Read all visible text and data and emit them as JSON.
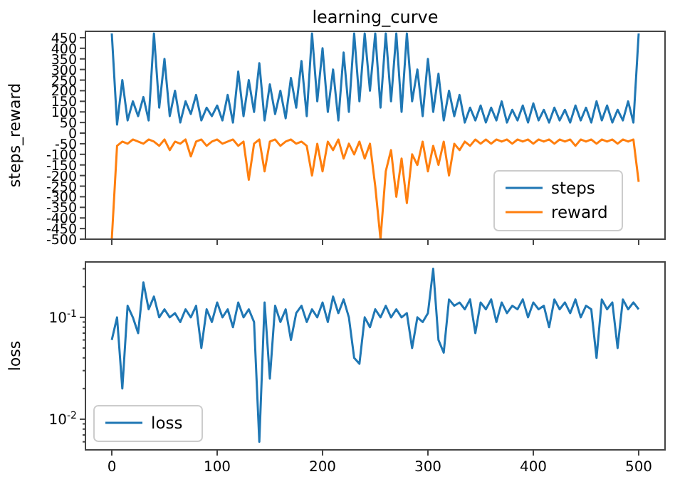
{
  "chart_data": [
    {
      "type": "line",
      "title": "learning_curve",
      "ylabel": "steps_reward",
      "legend": "bottom right",
      "grid": false,
      "tick_labels": "y",
      "xlim": [
        -25,
        525
      ],
      "xticks": [
        0,
        100,
        200,
        300,
        400,
        500
      ],
      "ylim": [
        -500,
        480
      ],
      "yticks": [
        -500,
        -450,
        -400,
        -350,
        -300,
        -250,
        -200,
        -150,
        -100,
        -50,
        0,
        50,
        100,
        150,
        200,
        250,
        300,
        350,
        400,
        450
      ],
      "x": [
        0,
        5,
        10,
        15,
        20,
        25,
        30,
        35,
        40,
        45,
        50,
        55,
        60,
        65,
        70,
        75,
        80,
        85,
        90,
        95,
        100,
        105,
        110,
        115,
        120,
        125,
        130,
        135,
        140,
        145,
        150,
        155,
        160,
        165,
        170,
        175,
        180,
        185,
        190,
        195,
        200,
        205,
        210,
        215,
        220,
        225,
        230,
        235,
        240,
        245,
        250,
        255,
        260,
        265,
        270,
        275,
        280,
        285,
        290,
        295,
        300,
        305,
        310,
        315,
        320,
        325,
        330,
        335,
        340,
        345,
        350,
        355,
        360,
        365,
        370,
        375,
        380,
        385,
        390,
        395,
        400,
        405,
        410,
        415,
        420,
        425,
        430,
        435,
        440,
        445,
        450,
        455,
        460,
        465,
        470,
        475,
        480,
        485,
        490,
        495,
        500
      ],
      "series": [
        {
          "name": "steps",
          "color": "#1f77b4",
          "values": [
            470,
            40,
            250,
            60,
            150,
            80,
            170,
            60,
            470,
            120,
            350,
            80,
            200,
            50,
            150,
            90,
            180,
            60,
            120,
            80,
            130,
            60,
            180,
            50,
            290,
            80,
            250,
            100,
            330,
            60,
            230,
            90,
            200,
            70,
            260,
            120,
            340,
            80,
            470,
            150,
            400,
            100,
            300,
            60,
            380,
            100,
            470,
            150,
            470,
            200,
            470,
            120,
            470,
            150,
            470,
            100,
            470,
            150,
            300,
            80,
            350,
            100,
            280,
            60,
            200,
            80,
            180,
            50,
            120,
            60,
            130,
            50,
            120,
            60,
            150,
            50,
            110,
            60,
            130,
            50,
            140,
            60,
            110,
            50,
            120,
            60,
            110,
            50,
            130,
            60,
            120,
            50,
            150,
            60,
            130,
            50,
            110,
            60,
            150,
            50,
            470
          ]
        },
        {
          "name": "reward",
          "color": "#ff7f0e",
          "values": [
            -500,
            -60,
            -40,
            -50,
            -30,
            -40,
            -50,
            -30,
            -40,
            -60,
            -30,
            -80,
            -40,
            -50,
            -30,
            -110,
            -40,
            -30,
            -60,
            -40,
            -30,
            -50,
            -40,
            -30,
            -60,
            -40,
            -220,
            -50,
            -30,
            -180,
            -40,
            -30,
            -60,
            -40,
            -30,
            -50,
            -40,
            -60,
            -200,
            -50,
            -180,
            -40,
            -80,
            -30,
            -120,
            -50,
            -100,
            -40,
            -120,
            -50,
            -250,
            -500,
            -180,
            -80,
            -300,
            -120,
            -330,
            -100,
            -150,
            -40,
            -180,
            -60,
            -150,
            -40,
            -200,
            -50,
            -80,
            -40,
            -60,
            -30,
            -50,
            -30,
            -50,
            -30,
            -40,
            -30,
            -50,
            -30,
            -40,
            -30,
            -50,
            -30,
            -40,
            -30,
            -50,
            -30,
            -40,
            -30,
            -60,
            -30,
            -40,
            -30,
            -50,
            -30,
            -40,
            -30,
            -50,
            -30,
            -40,
            -30,
            -230
          ]
        }
      ]
    },
    {
      "type": "line",
      "ylabel": "loss",
      "legend": "bottom left",
      "grid": false,
      "log": "y",
      "xlim": [
        -25,
        525
      ],
      "xticks": [
        0,
        100,
        200,
        300,
        400,
        500
      ],
      "ylim": [
        0.005,
        0.35
      ],
      "yticks": [
        {
          "value": 0.006,
          "label": null
        },
        {
          "value": 0.007,
          "label": null
        },
        {
          "value": 0.008,
          "label": null
        },
        {
          "value": 0.009,
          "label": null
        },
        {
          "value": 0.01,
          "label": "10$^{-2}$"
        },
        {
          "value": 0.02,
          "label": null
        },
        {
          "value": 0.03,
          "label": null
        },
        {
          "value": 0.04,
          "label": null
        },
        {
          "value": 0.05,
          "label": null
        },
        {
          "value": 0.06,
          "label": null
        },
        {
          "value": 0.07,
          "label": null
        },
        {
          "value": 0.08,
          "label": null
        },
        {
          "value": 0.09,
          "label": null
        },
        {
          "value": 0.1,
          "label": "10$^{-1}$"
        },
        {
          "value": 0.2,
          "label": null
        },
        {
          "value": 0.3,
          "label": null
        }
      ],
      "x": [
        0,
        5,
        10,
        15,
        20,
        25,
        30,
        35,
        40,
        45,
        50,
        55,
        60,
        65,
        70,
        75,
        80,
        85,
        90,
        95,
        100,
        105,
        110,
        115,
        120,
        125,
        130,
        135,
        140,
        145,
        150,
        155,
        160,
        165,
        170,
        175,
        180,
        185,
        190,
        195,
        200,
        205,
        210,
        215,
        220,
        225,
        230,
        235,
        240,
        245,
        250,
        255,
        260,
        265,
        270,
        275,
        280,
        285,
        290,
        295,
        300,
        305,
        310,
        315,
        320,
        325,
        330,
        335,
        340,
        345,
        350,
        355,
        360,
        365,
        370,
        375,
        380,
        385,
        390,
        395,
        400,
        405,
        410,
        415,
        420,
        425,
        430,
        435,
        440,
        445,
        450,
        455,
        460,
        465,
        470,
        475,
        480,
        485,
        490,
        495,
        500
      ],
      "series": [
        {
          "name": "loss",
          "color": "#1f77b4",
          "values": [
            0.06,
            0.1,
            0.02,
            0.13,
            0.1,
            0.07,
            0.22,
            0.12,
            0.16,
            0.1,
            0.12,
            0.1,
            0.11,
            0.09,
            0.12,
            0.1,
            0.13,
            0.05,
            0.12,
            0.09,
            0.14,
            0.1,
            0.12,
            0.08,
            0.14,
            0.1,
            0.12,
            0.09,
            0.006,
            0.14,
            0.025,
            0.13,
            0.09,
            0.12,
            0.06,
            0.11,
            0.13,
            0.09,
            0.12,
            0.1,
            0.14,
            0.09,
            0.16,
            0.11,
            0.15,
            0.1,
            0.04,
            0.035,
            0.1,
            0.08,
            0.12,
            0.1,
            0.13,
            0.1,
            0.12,
            0.1,
            0.11,
            0.05,
            0.1,
            0.09,
            0.11,
            0.3,
            0.06,
            0.045,
            0.15,
            0.13,
            0.14,
            0.12,
            0.15,
            0.07,
            0.14,
            0.12,
            0.15,
            0.09,
            0.14,
            0.11,
            0.13,
            0.12,
            0.15,
            0.1,
            0.14,
            0.12,
            0.13,
            0.08,
            0.15,
            0.12,
            0.14,
            0.11,
            0.15,
            0.1,
            0.13,
            0.12,
            0.04,
            0.15,
            0.12,
            0.14,
            0.05,
            0.15,
            0.12,
            0.14,
            0.12
          ]
        }
      ]
    }
  ]
}
